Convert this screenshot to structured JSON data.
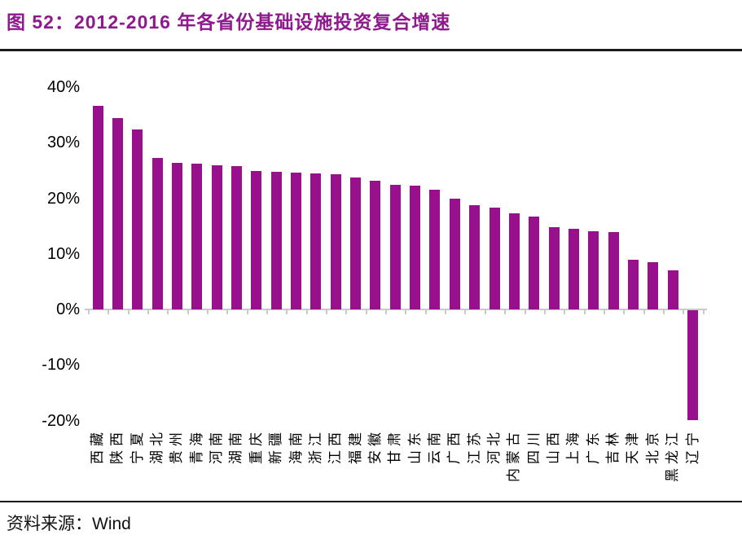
{
  "header": {
    "title": "图 52：2012-2016 年各省份基础设施投资复合增速"
  },
  "source": {
    "prefix": "资料来源：",
    "name": "Wind"
  },
  "colors": {
    "accent_bar": "#99108C",
    "title_text": "#8E1A8E",
    "axis_line": "#C9C9C9",
    "tick_mark": "#C9C9C9",
    "rule_dark": "#1A1A1A",
    "label_text": "#000000"
  },
  "chart_data": {
    "type": "bar",
    "title": "2012-2016 年各省份基础设施投资复合增速",
    "xlabel": "",
    "ylabel": "",
    "ylim": [
      -20,
      40
    ],
    "grid": false,
    "legend": "none",
    "bar_color": "#99108C",
    "ytick_labels": [
      "40%",
      "30%",
      "20%",
      "10%",
      "0%",
      "-10%",
      "-20%"
    ],
    "ytick_values": [
      40,
      30,
      20,
      10,
      0,
      -10,
      -20
    ],
    "categories": [
      "西藏",
      "陕西",
      "宁夏",
      "湖北",
      "贵州",
      "青海",
      "河南",
      "湖南",
      "重庆",
      "新疆",
      "海南",
      "浙江",
      "江西",
      "福建",
      "安徽",
      "甘肃",
      "山东",
      "云南",
      "广西",
      "江苏",
      "河北",
      "内蒙古",
      "四川",
      "山西",
      "上海",
      "广东",
      "吉林",
      "天津",
      "北京",
      "黑龙江",
      "辽宁"
    ],
    "values": [
      36.7,
      34.4,
      32.4,
      27.3,
      26.4,
      26.2,
      26.0,
      25.8,
      24.9,
      24.8,
      24.6,
      24.4,
      24.3,
      23.8,
      23.2,
      22.4,
      22.2,
      21.6,
      19.9,
      18.8,
      18.3,
      17.3,
      16.7,
      14.8,
      14.5,
      14.1,
      13.9,
      8.9,
      8.5,
      7.0,
      -19.8
    ]
  }
}
